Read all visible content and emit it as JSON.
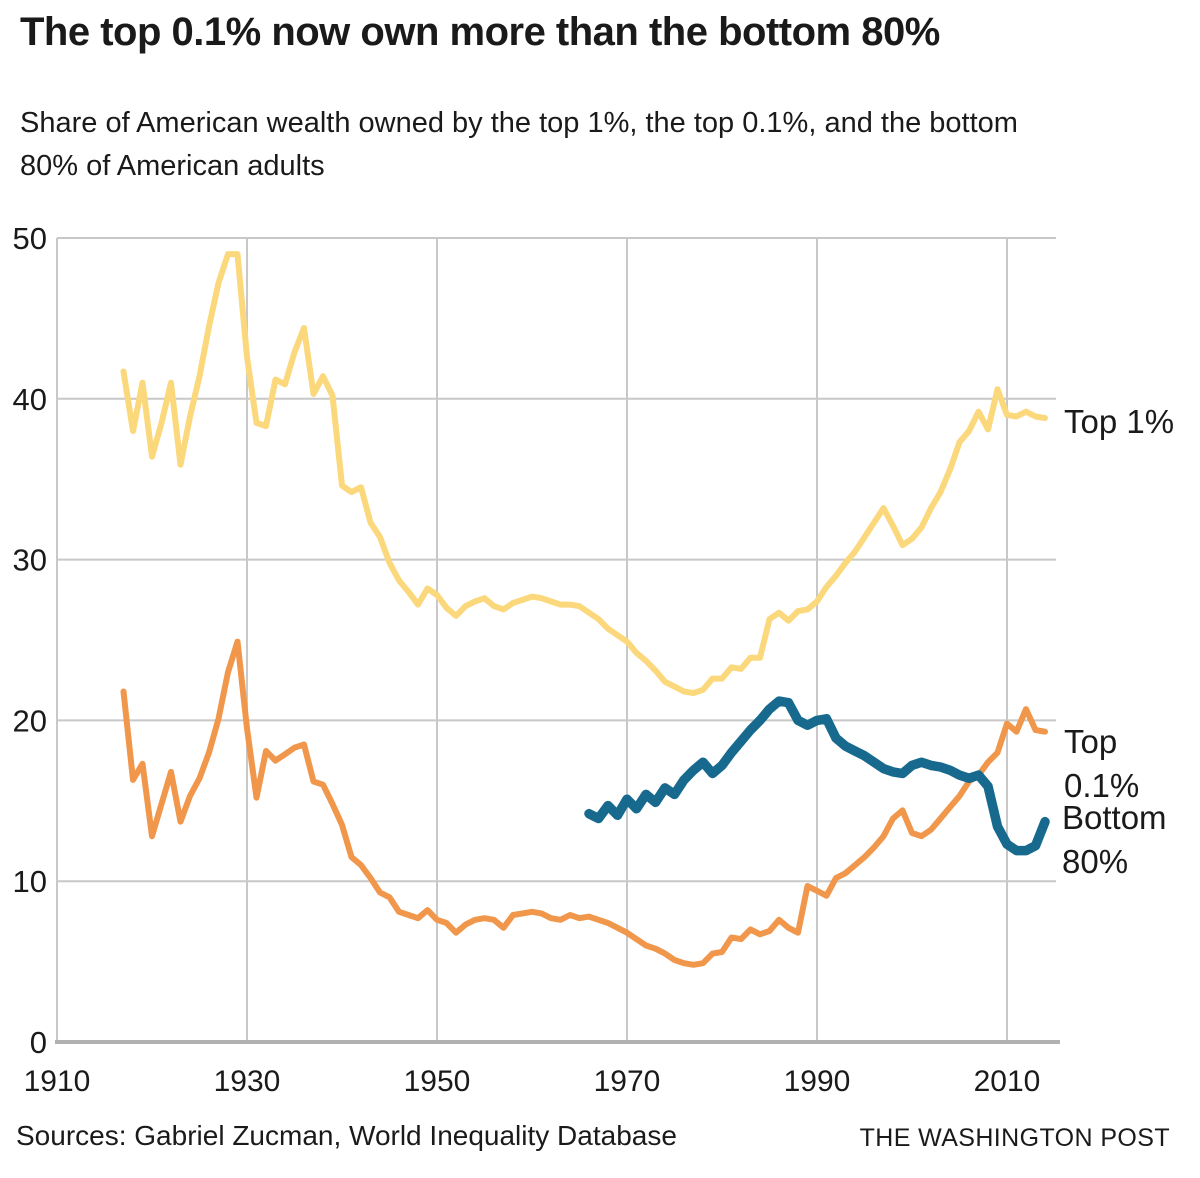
{
  "header": {
    "title": "The top 0.1% now own more than the bottom 80%",
    "subtitle": "Share of American wealth owned by the top 1%, the top 0.1%, and the bottom\n80% of American adults"
  },
  "footer": {
    "sources": "Sources: Gabriel Zucman, World Inequality Database",
    "credit": "THE WASHINGTON POST"
  },
  "colors": {
    "top1": "#fbd87c",
    "top01": "#f0974c",
    "bottom80": "#176a8e",
    "gridline": "#c8c8c8",
    "baseline": "#b1b1b1",
    "text": "#1a1a1a"
  },
  "chart_data": {
    "type": "line",
    "title": "The top 0.1% now own more than the bottom 80%",
    "xlabel": "",
    "ylabel": "",
    "xlim": [
      1910,
      2015
    ],
    "ylim": [
      0,
      50
    ],
    "x_ticks": [
      1910,
      1930,
      1950,
      1970,
      1990,
      2010
    ],
    "y_ticks": [
      0,
      10,
      20,
      30,
      40,
      50
    ],
    "grid": true,
    "legend_position": "inline-right",
    "series": [
      {
        "id": "top1",
        "label": "Top 1%",
        "color": "#fbd87c",
        "stroke_width": 6,
        "start_year": 1917,
        "values": [
          41.7,
          38.0,
          41.0,
          36.4,
          38.5,
          41.0,
          35.9,
          38.9,
          41.4,
          44.5,
          47.2,
          49.0,
          49.0,
          42.6,
          38.5,
          38.3,
          41.2,
          40.9,
          42.9,
          44.4,
          40.3,
          41.4,
          40.2,
          34.6,
          34.2,
          34.5,
          32.3,
          31.4,
          29.8,
          28.7,
          28.0,
          27.2,
          28.2,
          27.8,
          27.0,
          26.5,
          27.1,
          27.4,
          27.6,
          27.1,
          26.9,
          27.3,
          27.5,
          27.7,
          27.6,
          27.4,
          27.2,
          27.2,
          27.1,
          26.7,
          26.3,
          25.7,
          25.3,
          24.9,
          24.2,
          23.7,
          23.1,
          22.4,
          22.1,
          21.8,
          21.7,
          21.9,
          22.6,
          22.6,
          23.3,
          23.2,
          23.9,
          23.9,
          26.3,
          26.7,
          26.2,
          26.8,
          26.9,
          27.4,
          28.3,
          29.0,
          29.8,
          30.5,
          31.4,
          32.3,
          33.2,
          32.1,
          30.9,
          31.3,
          32.0,
          33.2,
          34.2,
          35.6,
          37.3,
          38.0,
          39.2,
          38.1,
          40.6,
          39.0,
          38.9,
          39.2,
          38.9,
          38.8
        ]
      },
      {
        "id": "top01",
        "label": "Top 0.1%",
        "color": "#f0974c",
        "stroke_width": 6,
        "start_year": 1917,
        "values": [
          21.8,
          16.3,
          17.3,
          12.8,
          14.8,
          16.8,
          13.7,
          15.3,
          16.4,
          18.0,
          20.1,
          23.0,
          24.9,
          19.5,
          15.2,
          18.1,
          17.5,
          17.9,
          18.3,
          18.5,
          16.2,
          16.0,
          14.8,
          13.5,
          11.5,
          11.0,
          10.2,
          9.3,
          9.0,
          8.1,
          7.9,
          7.7,
          8.2,
          7.6,
          7.4,
          6.8,
          7.3,
          7.6,
          7.7,
          7.6,
          7.1,
          7.9,
          8.0,
          8.1,
          8.0,
          7.7,
          7.6,
          7.9,
          7.7,
          7.8,
          7.6,
          7.4,
          7.1,
          6.8,
          6.4,
          6.0,
          5.8,
          5.5,
          5.1,
          4.9,
          4.8,
          4.9,
          5.5,
          5.6,
          6.5,
          6.4,
          7.0,
          6.7,
          6.9,
          7.6,
          7.1,
          6.8,
          9.7,
          9.4,
          9.1,
          10.2,
          10.5,
          11.0,
          11.5,
          12.1,
          12.8,
          13.9,
          14.4,
          13.0,
          12.8,
          13.2,
          13.9,
          14.6,
          15.3,
          16.2,
          16.6,
          17.4,
          18.0,
          19.8,
          19.3,
          20.7,
          19.4,
          19.3
        ]
      },
      {
        "id": "bottom80",
        "label": "Bottom 80%",
        "color": "#176a8e",
        "stroke_width": 9.5,
        "start_year": 1966,
        "values": [
          14.2,
          13.9,
          14.7,
          14.1,
          15.1,
          14.5,
          15.4,
          14.9,
          15.8,
          15.4,
          16.3,
          16.9,
          17.4,
          16.7,
          17.2,
          18.0,
          18.7,
          19.4,
          20.0,
          20.7,
          21.2,
          21.1,
          20.0,
          19.7,
          20.0,
          20.1,
          18.9,
          18.4,
          18.1,
          17.8,
          17.4,
          17.0,
          16.8,
          16.7,
          17.2,
          17.4,
          17.2,
          17.1,
          16.9,
          16.6,
          16.4,
          16.6,
          15.9,
          13.4,
          12.3,
          11.9,
          11.9,
          12.2,
          13.7
        ]
      }
    ]
  }
}
